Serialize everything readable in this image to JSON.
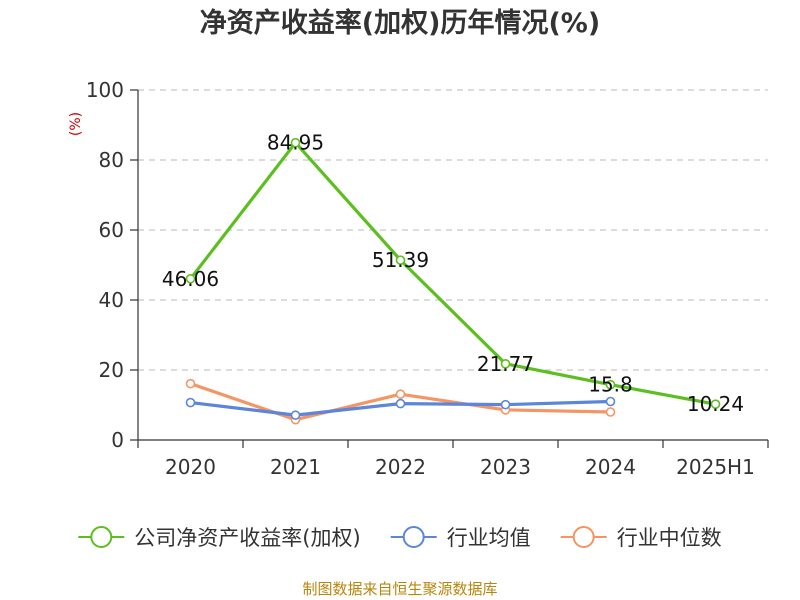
{
  "chart_data": {
    "type": "line",
    "title": "净资产收益率(加权)历年情况(%)",
    "ylabel": "(%)",
    "xlabel": "",
    "ylim": [
      0,
      100
    ],
    "yticks": [
      0,
      20,
      40,
      60,
      80,
      100
    ],
    "categories": [
      "2020",
      "2021",
      "2022",
      "2023",
      "2024",
      "2025H1"
    ],
    "grid": "horizontal-dashed",
    "legend_position": "bottom",
    "series": [
      {
        "name": "公司净资产收益率(加权)",
        "color": "#5cbf1f",
        "values": [
          46.06,
          84.95,
          51.39,
          21.77,
          15.8,
          10.24
        ],
        "labels": [
          "46.06",
          "84.95",
          "51.39",
          "21.77",
          "15.8",
          "10.24"
        ]
      },
      {
        "name": "行业均值",
        "color": "#5b86d9",
        "values": [
          10.7,
          7.1,
          10.4,
          10.1,
          11.0,
          null
        ]
      },
      {
        "name": "行业中位数",
        "color": "#f59563",
        "values": [
          16.1,
          5.8,
          13.1,
          8.6,
          8.0,
          null
        ]
      }
    ],
    "source": "制图数据来自恒生聚源数据库"
  }
}
